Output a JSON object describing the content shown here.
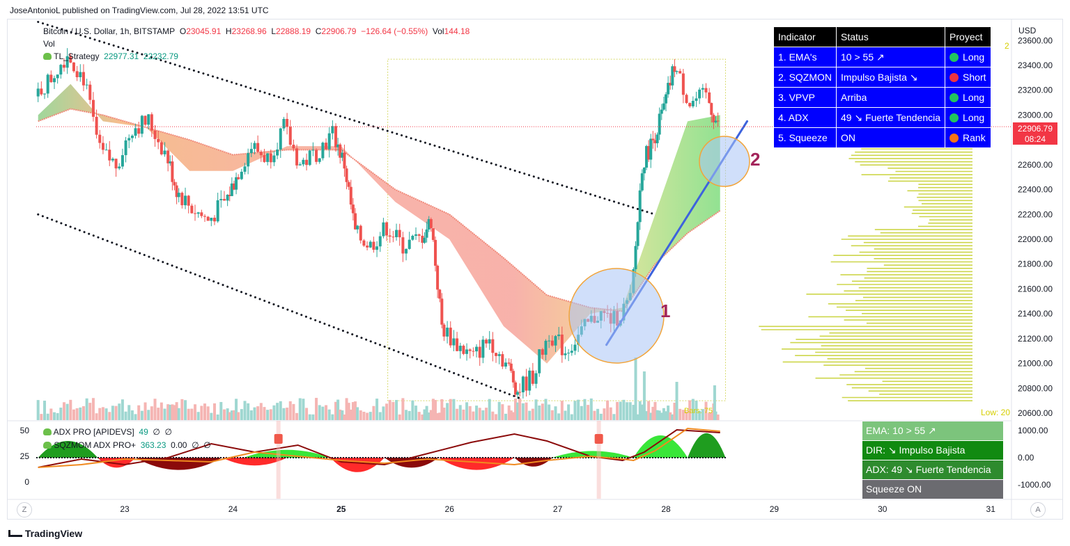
{
  "header": "JoseAntonioL published on TradingView.com, Jul 28, 2022 13:51 UTC",
  "footer": {
    "brand": "TradingView"
  },
  "buttons": {
    "zoom": "Z",
    "auto": "A"
  },
  "legend": {
    "symbol": "Bitcoin / U.S. Dollar, 1h, BITSTAMP",
    "o_label": "O",
    "o": "23045.91",
    "h_label": "H",
    "h": "23268.96",
    "l_label": "L",
    "l": "22888.19",
    "c_label": "C",
    "c": "22906.79",
    "change": "−126.64 (−0.55%)",
    "vol_label": "Vol",
    "vol": "144.18",
    "vol_line": "Vol",
    "strategy": "TL_Strategy",
    "strategy_v1": "22977.31",
    "strategy_v2": "22232.79",
    "adx_name": "ADX PRO [APIDEVS]",
    "adx_v1": "49",
    "adx_v2": "∅",
    "adx_v3": "∅",
    "sqz_name": "SQZMOM ADX PRO+",
    "sqz_v1": "363.23",
    "sqz_v2": "0.00",
    "sqz_v3": "∅",
    "sqz_v4": "∅"
  },
  "status_table": {
    "headers": [
      "Indicator",
      "Status",
      "Proyect"
    ],
    "rows": [
      {
        "indicator": "1. EMA's",
        "status": "10 > 55 ↗",
        "proyect": "Long",
        "dot_color": "#22c55e"
      },
      {
        "indicator": "2. SQZMON",
        "status": "Impulso Bajista ↘",
        "proyect": "Short",
        "dot_color": "#ef3340"
      },
      {
        "indicator": "3. VPVP",
        "status": "Arriba",
        "proyect": "Long",
        "dot_color": "#22c55e"
      },
      {
        "indicator": "4. ADX",
        "status": "49 ↘ Fuerte Tendencia",
        "proyect": "Long",
        "dot_color": "#22c55e"
      },
      {
        "indicator": "5. Squeeze",
        "status": "ON",
        "proyect": "Rank",
        "dot_color": "#f97316"
      }
    ]
  },
  "sub_boxes": [
    {
      "text": "EMA: 10 > 55 ↗",
      "color": "#7cc47c"
    },
    {
      "text": "DIR: ↘ Impulso Bajista",
      "color": "#118a11"
    },
    {
      "text": "ADX: 49 ↘ Fuerte Tendencia",
      "color": "#2e8b2e"
    },
    {
      "text": "Squeeze ON",
      "color": "#6b6b70"
    }
  ],
  "annotations": {
    "circle1": "1",
    "circle2": "2",
    "low_label": "Low: 20",
    "high_marker": "2",
    "bars_label": "Bars: 75"
  },
  "price_tag": {
    "price": "22906.79",
    "countdown": "08:24"
  },
  "chart_data": [
    {
      "type": "candlestick",
      "symbol": "Bitcoin / U.S. Dollar, 1h, BITSTAMP",
      "currency": "USD",
      "x_ticks": [
        "23",
        "24",
        "25",
        "26",
        "27",
        "28",
        "29",
        "30",
        "31"
      ],
      "y_ticks": [
        "23600.00",
        "23400.00",
        "23200.00",
        "23000.00",
        "22600.00",
        "22400.00",
        "22200.00",
        "22000.00",
        "21800.00",
        "21600.00",
        "21400.00",
        "21200.00",
        "21000.00",
        "20800.00",
        "20600.00"
      ],
      "ylim": [
        20580,
        23720
      ],
      "last_price": 22906.79,
      "price_path": [
        [
          22.2,
          23150
        ],
        [
          22.35,
          23300
        ],
        [
          22.5,
          23500
        ],
        [
          22.65,
          23300
        ],
        [
          22.8,
          22700
        ],
        [
          22.95,
          22600
        ],
        [
          23.1,
          22900
        ],
        [
          23.25,
          22950
        ],
        [
          23.4,
          22700
        ],
        [
          23.5,
          22400
        ],
        [
          23.65,
          22250
        ],
        [
          23.8,
          22150
        ],
        [
          23.95,
          22300
        ],
        [
          24.05,
          22500
        ],
        [
          24.2,
          22750
        ],
        [
          24.35,
          22650
        ],
        [
          24.5,
          22900
        ],
        [
          24.65,
          22600
        ],
        [
          24.8,
          22700
        ],
        [
          24.95,
          22850
        ],
        [
          25.05,
          22600
        ],
        [
          25.15,
          22050
        ],
        [
          25.3,
          21950
        ],
        [
          25.45,
          22100
        ],
        [
          25.6,
          21950
        ],
        [
          25.75,
          22000
        ],
        [
          25.85,
          22150
        ],
        [
          25.95,
          21300
        ],
        [
          26.1,
          21150
        ],
        [
          26.25,
          21050
        ],
        [
          26.4,
          21200
        ],
        [
          26.55,
          21000
        ],
        [
          26.65,
          20780
        ],
        [
          26.8,
          20900
        ],
        [
          26.95,
          21250
        ],
        [
          27.1,
          21100
        ],
        [
          27.25,
          21250
        ],
        [
          27.4,
          21400
        ],
        [
          27.55,
          21350
        ],
        [
          27.7,
          21500
        ],
        [
          27.8,
          22600
        ],
        [
          27.9,
          22800
        ],
        [
          28.0,
          23050
        ],
        [
          28.1,
          23400
        ],
        [
          28.25,
          23100
        ],
        [
          28.4,
          23150
        ],
        [
          28.5,
          22906
        ]
      ],
      "ema_fast": [
        [
          22.2,
          23000
        ],
        [
          22.5,
          23250
        ],
        [
          22.8,
          22950
        ],
        [
          23.2,
          22900
        ],
        [
          23.6,
          22550
        ],
        [
          24.0,
          22550
        ],
        [
          24.5,
          22750
        ],
        [
          25.0,
          22750
        ],
        [
          25.5,
          22300
        ],
        [
          26.0,
          22000
        ],
        [
          26.5,
          21300
        ],
        [
          26.9,
          21000
        ],
        [
          27.3,
          21400
        ],
        [
          27.6,
          21450
        ],
        [
          27.9,
          22200
        ],
        [
          28.2,
          22950
        ],
        [
          28.5,
          23000
        ]
      ],
      "ema_slow": [
        [
          22.2,
          22950
        ],
        [
          22.5,
          23050
        ],
        [
          22.8,
          23000
        ],
        [
          23.2,
          22900
        ],
        [
          23.6,
          22800
        ],
        [
          24.0,
          22680
        ],
        [
          24.5,
          22720
        ],
        [
          25.0,
          22720
        ],
        [
          25.5,
          22400
        ],
        [
          26.0,
          22200
        ],
        [
          26.5,
          21850
        ],
        [
          26.9,
          21550
        ],
        [
          27.3,
          21450
        ],
        [
          27.6,
          21420
        ],
        [
          27.9,
          21800
        ],
        [
          28.2,
          22050
        ],
        [
          28.5,
          22230
        ]
      ],
      "trendlines": [
        {
          "from": [
            22.2,
            23750
          ],
          "to": [
            27.9,
            22200
          ],
          "style": "dotted"
        },
        {
          "from": [
            22.2,
            22200
          ],
          "to": [
            26.65,
            20720
          ],
          "style": "dotted"
        },
        {
          "from": [
            27.45,
            21150
          ],
          "to": [
            28.75,
            22950
          ],
          "style": "solid"
        }
      ]
    },
    {
      "type": "area",
      "name": "ADX PRO [APIDEVS]",
      "y_ticks": [
        "50",
        "25",
        "0"
      ],
      "ylim": [
        -10,
        55
      ]
    },
    {
      "type": "area",
      "name": "SQZMOM ADX PRO+",
      "y_ticks": [
        "1000.00",
        "0.00",
        "-1000.00"
      ],
      "ylim": [
        -1400,
        1400
      ]
    }
  ]
}
